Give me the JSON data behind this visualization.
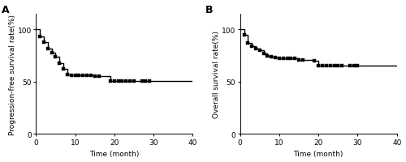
{
  "panel_A": {
    "label": "A",
    "xlabel": "Time (month)",
    "ylabel": "Progression-free survival rate(%)",
    "xlim": [
      0,
      40
    ],
    "ylim": [
      0,
      115
    ],
    "yticks": [
      0,
      50,
      100
    ],
    "xticks": [
      0,
      10,
      20,
      30,
      40
    ],
    "km_times": [
      0,
      1,
      2,
      3,
      4,
      5,
      6,
      7,
      8,
      9,
      10,
      11,
      12,
      13,
      14,
      15,
      16,
      19,
      20,
      21,
      22,
      23,
      24,
      25,
      27,
      28,
      29
    ],
    "km_surv": [
      100,
      93,
      88,
      82,
      78,
      74,
      68,
      62,
      57,
      56,
      56,
      56,
      56,
      56,
      56,
      55,
      55,
      51,
      51,
      51,
      51,
      51,
      51,
      51,
      51,
      51,
      51
    ],
    "censor_times": [
      1,
      2,
      3,
      4,
      5,
      6,
      7,
      8,
      9,
      10,
      11,
      12,
      13,
      14,
      15,
      16,
      19,
      20,
      21,
      22,
      23,
      24,
      25,
      27,
      28,
      29
    ],
    "censor_surv": [
      93,
      88,
      82,
      78,
      74,
      68,
      62,
      57,
      56,
      56,
      56,
      56,
      56,
      56,
      55,
      55,
      51,
      51,
      51,
      51,
      51,
      51,
      51,
      51,
      51,
      51
    ]
  },
  "panel_B": {
    "label": "B",
    "xlabel": "Time (month)",
    "ylabel": "Overall survival rate(%)",
    "xlim": [
      0,
      40
    ],
    "ylim": [
      0,
      115
    ],
    "yticks": [
      0,
      50,
      100
    ],
    "xticks": [
      0,
      10,
      20,
      30,
      40
    ],
    "km_times": [
      0,
      1,
      2,
      3,
      4,
      5,
      6,
      7,
      8,
      9,
      10,
      11,
      12,
      13,
      14,
      15,
      16,
      19,
      20,
      21,
      22,
      23,
      24,
      25,
      26,
      28,
      29,
      30
    ],
    "km_surv": [
      100,
      95,
      87,
      84,
      82,
      80,
      77,
      75,
      74,
      73,
      72,
      72,
      72,
      72,
      72,
      71,
      71,
      70,
      65,
      65,
      65,
      65,
      65,
      65,
      65,
      65,
      65,
      65
    ],
    "censor_times": [
      1,
      2,
      3,
      4,
      5,
      6,
      7,
      8,
      9,
      10,
      11,
      12,
      13,
      14,
      15,
      16,
      19,
      20,
      21,
      22,
      23,
      24,
      25,
      26,
      28,
      29,
      30
    ],
    "censor_surv": [
      95,
      87,
      84,
      82,
      80,
      77,
      75,
      74,
      73,
      72,
      72,
      72,
      72,
      72,
      71,
      71,
      70,
      65,
      65,
      65,
      65,
      65,
      65,
      65,
      65,
      65,
      65
    ]
  },
  "line_color": "#000000",
  "marker_color": "#000000",
  "marker_size": 2.8,
  "line_width": 1.0,
  "font_size": 6.5,
  "panel_label_font_size": 9
}
